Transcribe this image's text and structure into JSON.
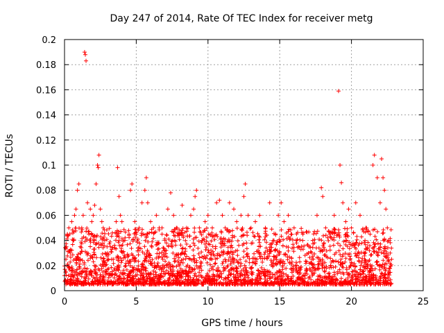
{
  "chart_data": {
    "type": "scatter",
    "title": "Day 247 of 2014, Rate Of TEC Index for receiver metg",
    "xlabel": "GPS time / hours",
    "ylabel": "ROTI / TECUs",
    "xlim": [
      0,
      25
    ],
    "ylim": [
      0,
      0.2
    ],
    "x_ticks": [
      0,
      5,
      10,
      15,
      20,
      25
    ],
    "y_ticks": [
      0,
      0.02,
      0.04,
      0.06,
      0.08,
      0.1,
      0.12,
      0.14,
      0.16,
      0.18,
      0.2
    ],
    "x_tick_labels": [
      "0",
      "5",
      "10",
      "15",
      "20",
      "25"
    ],
    "y_tick_labels": [
      "0",
      "0.02",
      "0.04",
      "0.06",
      "0.08",
      "0.1",
      "0.12",
      "0.14",
      "0.16",
      "0.18",
      "0.2"
    ],
    "grid": true,
    "marker": "+",
    "color": "#ff0000",
    "series": [
      {
        "points": [
          [
            0.0,
            0.012
          ],
          [
            0.1,
            0.025
          ],
          [
            0.2,
            0.045
          ],
          [
            0.3,
            0.05
          ],
          [
            0.4,
            0.03
          ],
          [
            0.5,
            0.055
          ],
          [
            0.6,
            0.04
          ],
          [
            0.7,
            0.06
          ],
          [
            0.8,
            0.065
          ],
          [
            0.9,
            0.08
          ],
          [
            1.0,
            0.085
          ],
          [
            1.1,
            0.035
          ],
          [
            1.2,
            0.05
          ],
          [
            1.3,
            0.06
          ],
          [
            1.4,
            0.19
          ],
          [
            1.45,
            0.188
          ],
          [
            1.5,
            0.183
          ],
          [
            1.6,
            0.07
          ],
          [
            1.7,
            0.045
          ],
          [
            1.8,
            0.065
          ],
          [
            1.9,
            0.055
          ],
          [
            2.0,
            0.06
          ],
          [
            2.1,
            0.068
          ],
          [
            2.2,
            0.085
          ],
          [
            2.3,
            0.1
          ],
          [
            2.35,
            0.098
          ],
          [
            2.4,
            0.108
          ],
          [
            2.5,
            0.065
          ],
          [
            2.6,
            0.055
          ],
          [
            2.7,
            0.05
          ],
          [
            2.8,
            0.04
          ],
          [
            3.0,
            0.03
          ],
          [
            3.2,
            0.035
          ],
          [
            3.4,
            0.025
          ],
          [
            3.6,
            0.055
          ],
          [
            3.7,
            0.098
          ],
          [
            3.8,
            0.075
          ],
          [
            3.9,
            0.06
          ],
          [
            4.0,
            0.055
          ],
          [
            4.2,
            0.04
          ],
          [
            4.5,
            0.045
          ],
          [
            4.6,
            0.08
          ],
          [
            4.7,
            0.085
          ],
          [
            4.9,
            0.055
          ],
          [
            5.0,
            0.045
          ],
          [
            5.2,
            0.05
          ],
          [
            5.4,
            0.07
          ],
          [
            5.6,
            0.08
          ],
          [
            5.7,
            0.09
          ],
          [
            5.8,
            0.07
          ],
          [
            6.0,
            0.055
          ],
          [
            6.2,
            0.05
          ],
          [
            6.4,
            0.06
          ],
          [
            6.6,
            0.05
          ],
          [
            6.8,
            0.045
          ],
          [
            7.0,
            0.04
          ],
          [
            7.2,
            0.065
          ],
          [
            7.4,
            0.078
          ],
          [
            7.6,
            0.06
          ],
          [
            7.8,
            0.05
          ],
          [
            8.0,
            0.045
          ],
          [
            8.2,
            0.068
          ],
          [
            8.5,
            0.05
          ],
          [
            8.8,
            0.06
          ],
          [
            9.0,
            0.065
          ],
          [
            9.1,
            0.075
          ],
          [
            9.2,
            0.08
          ],
          [
            9.4,
            0.05
          ],
          [
            9.6,
            0.04
          ],
          [
            9.8,
            0.055
          ],
          [
            10.0,
            0.06
          ],
          [
            10.3,
            0.05
          ],
          [
            10.6,
            0.07
          ],
          [
            10.8,
            0.072
          ],
          [
            11.0,
            0.06
          ],
          [
            11.2,
            0.05
          ],
          [
            11.5,
            0.07
          ],
          [
            11.8,
            0.065
          ],
          [
            12.0,
            0.055
          ],
          [
            12.3,
            0.06
          ],
          [
            12.5,
            0.075
          ],
          [
            12.6,
            0.085
          ],
          [
            12.8,
            0.06
          ],
          [
            13.0,
            0.05
          ],
          [
            13.3,
            0.055
          ],
          [
            13.6,
            0.06
          ],
          [
            14.0,
            0.05
          ],
          [
            14.3,
            0.07
          ],
          [
            14.6,
            0.04
          ],
          [
            14.9,
            0.06
          ],
          [
            15.1,
            0.07
          ],
          [
            15.3,
            0.055
          ],
          [
            15.6,
            0.06
          ],
          [
            16.0,
            0.05
          ],
          [
            16.3,
            0.035
          ],
          [
            16.6,
            0.04
          ],
          [
            17.0,
            0.03
          ],
          [
            17.3,
            0.04
          ],
          [
            17.6,
            0.06
          ],
          [
            17.9,
            0.082
          ],
          [
            18.0,
            0.075
          ],
          [
            18.2,
            0.05
          ],
          [
            18.5,
            0.045
          ],
          [
            18.8,
            0.06
          ],
          [
            19.1,
            0.159
          ],
          [
            19.2,
            0.1
          ],
          [
            19.3,
            0.086
          ],
          [
            19.4,
            0.07
          ],
          [
            19.6,
            0.055
          ],
          [
            19.8,
            0.065
          ],
          [
            20.0,
            0.05
          ],
          [
            20.3,
            0.07
          ],
          [
            20.6,
            0.06
          ],
          [
            21.0,
            0.05
          ],
          [
            21.3,
            0.045
          ],
          [
            21.5,
            0.1
          ],
          [
            21.6,
            0.108
          ],
          [
            21.8,
            0.09
          ],
          [
            22.0,
            0.07
          ],
          [
            22.1,
            0.105
          ],
          [
            22.2,
            0.09
          ],
          [
            22.3,
            0.08
          ],
          [
            22.4,
            0.065
          ],
          [
            22.5,
            0.05
          ],
          [
            22.6,
            0.04
          ],
          [
            22.7,
            0.03
          ],
          [
            22.8,
            0.025
          ]
        ]
      }
    ]
  }
}
